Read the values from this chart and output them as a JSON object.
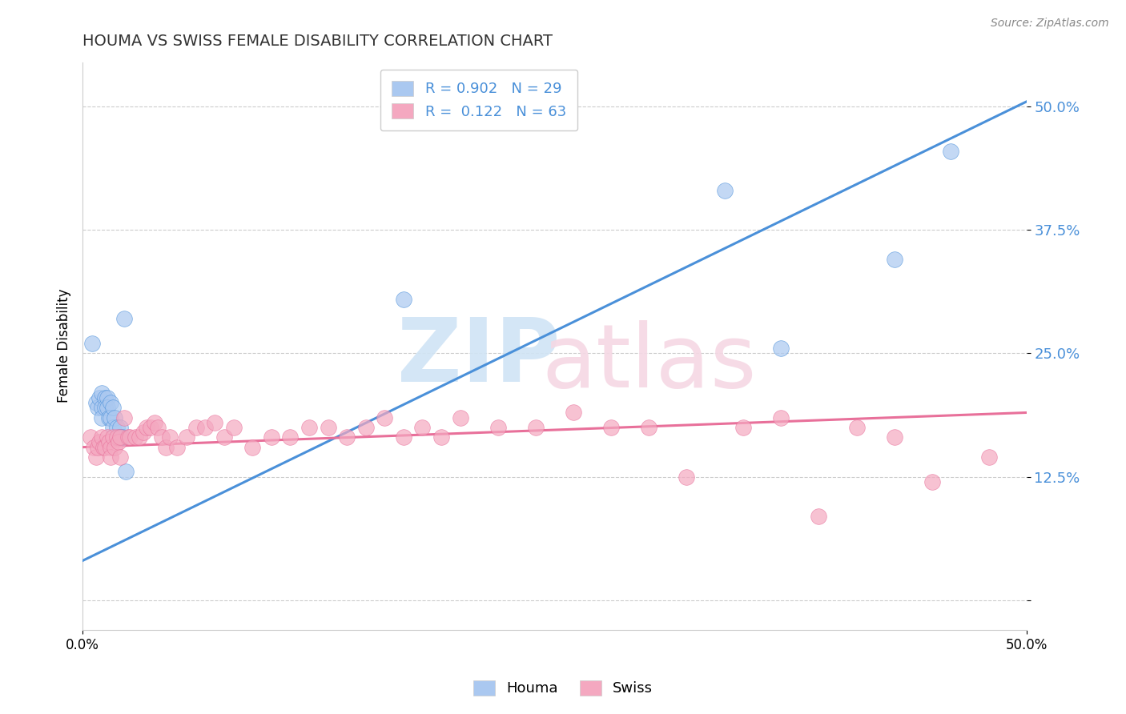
{
  "title": "HOUMA VS SWISS FEMALE DISABILITY CORRELATION CHART",
  "source": "Source: ZipAtlas.com",
  "ylabel": "Female Disability",
  "xlim": [
    0.0,
    0.5
  ],
  "ylim": [
    -0.03,
    0.545
  ],
  "yticks": [
    0.0,
    0.125,
    0.25,
    0.375,
    0.5
  ],
  "ytick_labels": [
    "",
    "12.5%",
    "25.0%",
    "37.5%",
    "50.0%"
  ],
  "houma_color": "#aac8f0",
  "swiss_color": "#f4a8c0",
  "houma_line_color": "#4a90d9",
  "swiss_line_color": "#e8709a",
  "legend_R_houma": "0.902",
  "legend_N_houma": "29",
  "legend_R_swiss": "0.122",
  "legend_N_swiss": "63",
  "houma_x": [
    0.005,
    0.007,
    0.008,
    0.009,
    0.01,
    0.01,
    0.01,
    0.012,
    0.012,
    0.013,
    0.013,
    0.014,
    0.015,
    0.015,
    0.016,
    0.016,
    0.017,
    0.018,
    0.019,
    0.02,
    0.02,
    0.021,
    0.022,
    0.023,
    0.17,
    0.34,
    0.37,
    0.43,
    0.46
  ],
  "houma_y": [
    0.26,
    0.2,
    0.195,
    0.205,
    0.21,
    0.195,
    0.185,
    0.205,
    0.195,
    0.205,
    0.195,
    0.185,
    0.2,
    0.185,
    0.195,
    0.175,
    0.185,
    0.175,
    0.165,
    0.175,
    0.165,
    0.165,
    0.285,
    0.13,
    0.305,
    0.415,
    0.255,
    0.345,
    0.455
  ],
  "swiss_x": [
    0.004,
    0.006,
    0.007,
    0.008,
    0.009,
    0.01,
    0.011,
    0.012,
    0.013,
    0.014,
    0.015,
    0.015,
    0.016,
    0.017,
    0.018,
    0.019,
    0.02,
    0.02,
    0.022,
    0.024,
    0.025,
    0.028,
    0.03,
    0.032,
    0.034,
    0.036,
    0.038,
    0.04,
    0.042,
    0.044,
    0.046,
    0.05,
    0.055,
    0.06,
    0.065,
    0.07,
    0.075,
    0.08,
    0.09,
    0.1,
    0.11,
    0.12,
    0.13,
    0.14,
    0.15,
    0.16,
    0.17,
    0.18,
    0.19,
    0.2,
    0.22,
    0.24,
    0.26,
    0.28,
    0.3,
    0.32,
    0.35,
    0.37,
    0.39,
    0.41,
    0.43,
    0.45,
    0.48
  ],
  "swiss_y": [
    0.165,
    0.155,
    0.145,
    0.155,
    0.16,
    0.165,
    0.155,
    0.155,
    0.165,
    0.16,
    0.155,
    0.145,
    0.165,
    0.155,
    0.165,
    0.16,
    0.165,
    0.145,
    0.185,
    0.165,
    0.165,
    0.165,
    0.165,
    0.17,
    0.175,
    0.175,
    0.18,
    0.175,
    0.165,
    0.155,
    0.165,
    0.155,
    0.165,
    0.175,
    0.175,
    0.18,
    0.165,
    0.175,
    0.155,
    0.165,
    0.165,
    0.175,
    0.175,
    0.165,
    0.175,
    0.185,
    0.165,
    0.175,
    0.165,
    0.185,
    0.175,
    0.175,
    0.19,
    0.175,
    0.175,
    0.125,
    0.175,
    0.185,
    0.085,
    0.175,
    0.165,
    0.12,
    0.145
  ],
  "houma_line_x": [
    0.0,
    0.5
  ],
  "houma_line_y": [
    0.04,
    0.505
  ],
  "swiss_line_x": [
    0.0,
    0.5
  ],
  "swiss_line_y": [
    0.155,
    0.19
  ]
}
